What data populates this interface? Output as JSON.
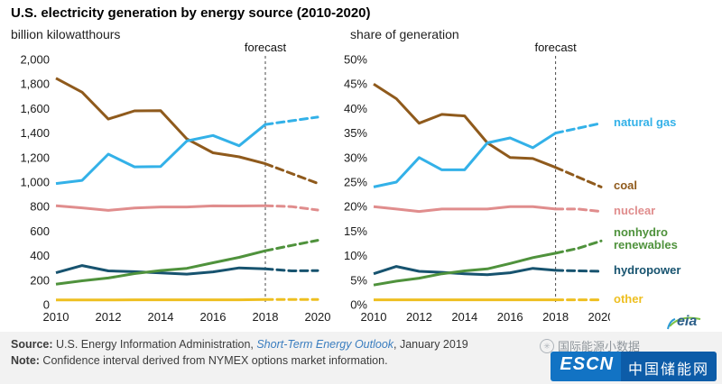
{
  "title": "U.S. electricity generation by energy source  (2010-2020)",
  "chart_data": [
    {
      "type": "line",
      "title": "billion kilowatthours",
      "x": [
        2010,
        2011,
        2012,
        2013,
        2014,
        2015,
        2016,
        2017,
        2018,
        2019,
        2020
      ],
      "xtick_step": 2,
      "ylim": [
        0,
        2000
      ],
      "ytick_step": 200,
      "yformat": "comma",
      "grid": false,
      "forecast_from": 2018,
      "forecast_label": "forecast",
      "series": [
        {
          "name": "nuclear",
          "color": "#e08d8d",
          "values": [
            807,
            790,
            769,
            789,
            797,
            797,
            806,
            805,
            807,
            800,
            772
          ]
        },
        {
          "name": "other",
          "color": "#eebf20",
          "values": [
            38,
            38,
            38,
            40,
            40,
            40,
            40,
            40,
            42,
            42,
            42
          ]
        },
        {
          "name": "hydropower",
          "color": "#17536f",
          "values": [
            260,
            319,
            276,
            269,
            259,
            249,
            268,
            300,
            292,
            276,
            278
          ]
        },
        {
          "name": "nonhydro renewables",
          "color": "#4f923c",
          "values": [
            168,
            195,
            218,
            254,
            279,
            296,
            342,
            386,
            440,
            483,
            525
          ]
        },
        {
          "name": "coal",
          "color": "#8f5a1c",
          "values": [
            1847,
            1733,
            1514,
            1581,
            1582,
            1352,
            1239,
            1206,
            1150,
            1070,
            990
          ]
        },
        {
          "name": "natural gas",
          "color": "#33b1e8",
          "values": [
            988,
            1014,
            1228,
            1124,
            1127,
            1335,
            1380,
            1296,
            1470,
            1500,
            1530
          ]
        }
      ]
    },
    {
      "type": "line",
      "title": "share of generation",
      "x": [
        2010,
        2011,
        2012,
        2013,
        2014,
        2015,
        2016,
        2017,
        2018,
        2019,
        2020
      ],
      "xtick_step": 2,
      "ylim": [
        0,
        50
      ],
      "ytick_step": 5,
      "yformat": "percent",
      "grid": false,
      "forecast_from": 2018,
      "forecast_label": "forecast",
      "series": [
        {
          "name": "nuclear",
          "color": "#e08d8d",
          "values": [
            20,
            19.5,
            19,
            19.5,
            19.5,
            19.5,
            20,
            20,
            19.5,
            19.5,
            19
          ]
        },
        {
          "name": "other",
          "color": "#eebf20",
          "values": [
            1,
            1,
            1,
            1,
            1,
            1,
            1,
            1,
            1,
            1,
            1
          ]
        },
        {
          "name": "hydropower",
          "color": "#17536f",
          "values": [
            6.3,
            7.8,
            6.8,
            6.6,
            6.3,
            6.1,
            6.5,
            7.4,
            7,
            6.9,
            6.8
          ]
        },
        {
          "name": "nonhydro renewables",
          "color": "#4f923c",
          "values": [
            4,
            4.8,
            5.4,
            6.3,
            6.9,
            7.3,
            8.4,
            9.6,
            10.5,
            11.5,
            13
          ]
        },
        {
          "name": "coal",
          "color": "#8f5a1c",
          "values": [
            45,
            42,
            37,
            38.8,
            38.5,
            33,
            30,
            29.8,
            28,
            26,
            24
          ]
        },
        {
          "name": "natural gas",
          "color": "#33b1e8",
          "values": [
            24,
            25,
            30,
            27.5,
            27.5,
            33,
            34,
            32,
            35,
            36,
            37
          ]
        }
      ]
    }
  ],
  "legend": [
    {
      "label": "natural gas",
      "color": "#33b1e8"
    },
    {
      "label": "coal",
      "color": "#8f5a1c"
    },
    {
      "label": "nuclear",
      "color": "#e08d8d"
    },
    {
      "label": "nonhydro renewables",
      "color": "#4f923c"
    },
    {
      "label": "hydropower",
      "color": "#17536f"
    },
    {
      "label": "other",
      "color": "#eebf20"
    }
  ],
  "footer": {
    "source_label": "Source:",
    "source_text": " U.S. Energy Information Administration, ",
    "source_link": "Short-Term Energy Outlook",
    "source_date": ", January 2019",
    "note_label": "Note:",
    "note_text": " Confidence interval derived from NYMEX options market information."
  },
  "logos": {
    "eia_text": "eia",
    "watermark_text": "国际能源小数据",
    "escn_text": "ESCN",
    "escn_cn_text": "中国储能网"
  }
}
